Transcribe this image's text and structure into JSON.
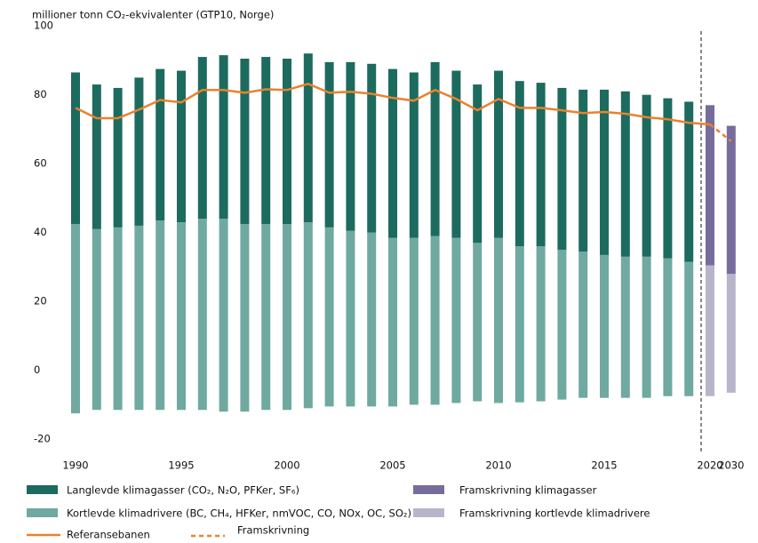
{
  "chart_data": {
    "type": "bar",
    "y_label": "millioner tonn CO₂-ekvivalenter (GTP10, Norge)",
    "categories": [
      "1990",
      null,
      null,
      null,
      null,
      "1995",
      null,
      null,
      null,
      null,
      "2000",
      null,
      null,
      null,
      null,
      "2005",
      null,
      null,
      null,
      null,
      "2010",
      null,
      null,
      null,
      null,
      "2015",
      null,
      null,
      null,
      null,
      "2020",
      "2030"
    ],
    "ylim": [
      -20,
      100
    ],
    "yticks": [
      -20,
      0,
      20,
      40,
      60,
      80,
      100
    ],
    "grid": false,
    "series": [
      {
        "name": "Langlevde klimagasser (CO₂,  N₂O, PFKer, SF₆)",
        "type": "bar",
        "color": "#1c6b5e",
        "values": [
          44,
          42,
          40.5,
          43,
          44,
          44,
          47,
          47.5,
          48,
          48.5,
          48,
          49,
          48,
          49,
          49,
          49,
          48,
          50.5,
          48.5,
          46,
          48.5,
          48,
          47.5,
          47,
          47,
          48,
          48,
          47,
          46.5,
          46.5,
          null,
          null
        ]
      },
      {
        "name": "Kortlevde klimadrivere (BC, CH₄, HFKer, nmVOC, CO, NOx, OC, SO₂)",
        "type": "bar",
        "color": "#6fa9a0",
        "values": [
          44,
          42.5,
          43,
          43.5,
          45,
          44.5,
          45.5,
          45.5,
          44,
          44,
          44,
          44.5,
          43,
          42,
          41.5,
          40,
          40,
          40.5,
          40,
          38.5,
          40,
          37.5,
          37.5,
          36.5,
          36,
          35,
          34.5,
          34.5,
          34,
          33,
          null,
          null
        ],
        "negative_values": [
          -11,
          -10,
          -10,
          -10,
          -10,
          -10,
          -10,
          -10.5,
          -10.5,
          -10,
          -10,
          -9.5,
          -9,
          -9,
          -9,
          -9,
          -8.5,
          -8.5,
          -8,
          -7.5,
          -8,
          -7.8,
          -7.5,
          -7,
          -6.5,
          -6.5,
          -6.5,
          -6.5,
          -6,
          -6,
          null,
          null
        ]
      },
      {
        "name": "Framskrivning klimagasser",
        "type": "bar",
        "color": "#776c9b",
        "values": [
          null,
          null,
          null,
          null,
          null,
          null,
          null,
          null,
          null,
          null,
          null,
          null,
          null,
          null,
          null,
          null,
          null,
          null,
          null,
          null,
          null,
          null,
          null,
          null,
          null,
          null,
          null,
          null,
          null,
          null,
          46.5,
          43
        ]
      },
      {
        "name": "Framskrivning kortlevde klimadrivere",
        "type": "bar",
        "color": "#b8b5cb",
        "values": [
          null,
          null,
          null,
          null,
          null,
          null,
          null,
          null,
          null,
          null,
          null,
          null,
          null,
          null,
          null,
          null,
          null,
          null,
          null,
          null,
          null,
          null,
          null,
          null,
          null,
          null,
          null,
          null,
          null,
          null,
          32,
          29.5
        ],
        "negative_values": [
          null,
          null,
          null,
          null,
          null,
          null,
          null,
          null,
          null,
          null,
          null,
          null,
          null,
          null,
          null,
          null,
          null,
          null,
          null,
          null,
          null,
          null,
          null,
          null,
          null,
          null,
          null,
          null,
          null,
          null,
          -6,
          -5
        ]
      },
      {
        "name": "Referansebanen",
        "type": "line",
        "color": "#e8822e",
        "dashed": false,
        "values": [
          77.7,
          74.7,
          74.7,
          77.2,
          80,
          79.3,
          82.9,
          82.9,
          82.1,
          83.1,
          82.9,
          84.7,
          82.1,
          82.4,
          81.8,
          80.6,
          79.8,
          82.9,
          80.3,
          77,
          80.3,
          77.7,
          77.7,
          77,
          76.2,
          76.5,
          76,
          75,
          74.4,
          73.4,
          72.9,
          null
        ]
      },
      {
        "name": "Framskrivning",
        "type": "line",
        "color": "#e8822e",
        "dashed": true,
        "values": [
          null,
          null,
          null,
          null,
          null,
          null,
          null,
          null,
          null,
          null,
          null,
          null,
          null,
          null,
          null,
          null,
          null,
          null,
          null,
          null,
          null,
          null,
          null,
          null,
          null,
          null,
          null,
          null,
          null,
          null,
          72.9,
          68
        ]
      }
    ]
  }
}
